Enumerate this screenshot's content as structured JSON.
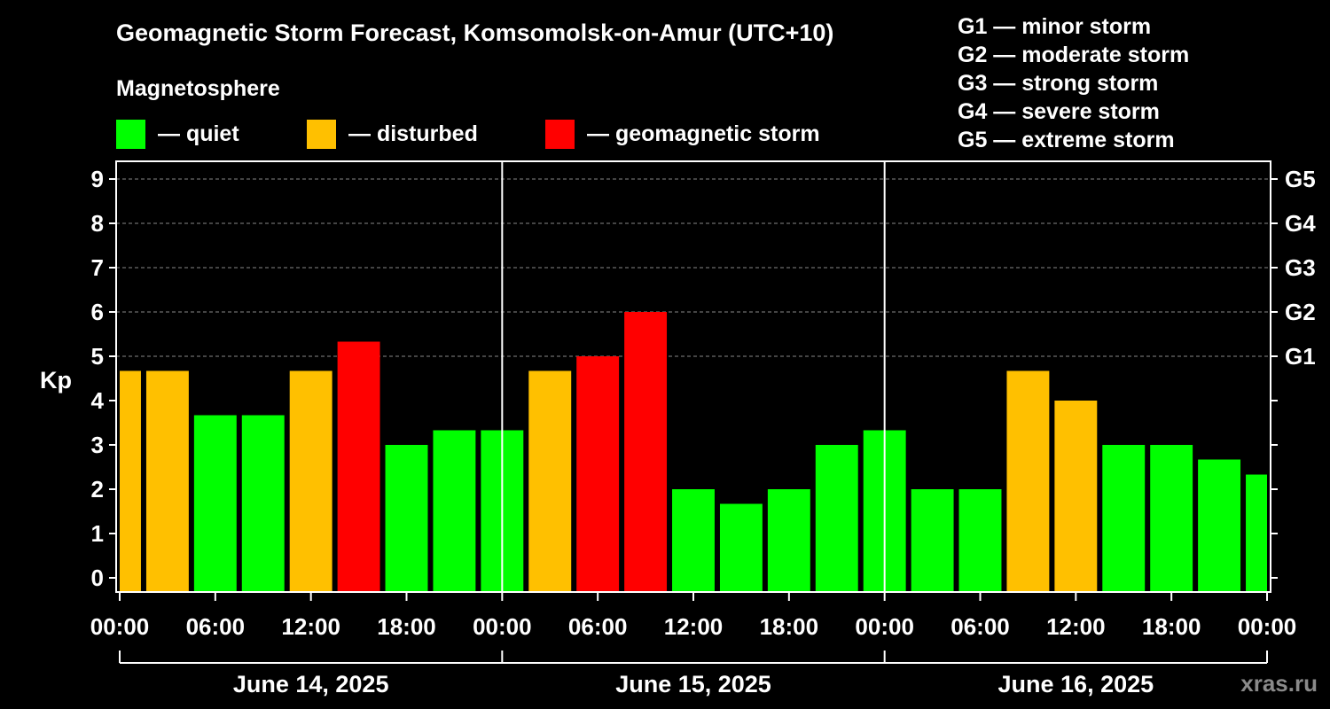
{
  "chart_data": {
    "type": "bar",
    "title": "Geomagnetic Storm Forecast, Komsomolsk-on-Amur (UTC+10)",
    "ylabel": "Kp",
    "ylim": [
      0,
      9
    ],
    "y_ticks": [
      "0",
      "1",
      "2",
      "3",
      "4",
      "5",
      "6",
      "7",
      "8",
      "9"
    ],
    "right_ticks": [
      {
        "kp": 5,
        "label": "G1"
      },
      {
        "kp": 6,
        "label": "G2"
      },
      {
        "kp": 7,
        "label": "G3"
      },
      {
        "kp": 8,
        "label": "G4"
      },
      {
        "kp": 9,
        "label": "G5"
      }
    ],
    "x_tick_labels": [
      "00:00",
      "06:00",
      "12:00",
      "18:00",
      "00:00",
      "06:00",
      "12:00",
      "18:00",
      "00:00",
      "06:00",
      "12:00",
      "18:00",
      "00:00"
    ],
    "days": [
      "June 14, 2025",
      "June 15, 2025",
      "June 16, 2025"
    ],
    "grid": true,
    "bars": [
      {
        "hour": 0,
        "kp": 4.67,
        "level": "disturbed"
      },
      {
        "hour": 3,
        "kp": 4.67,
        "level": "disturbed"
      },
      {
        "hour": 6,
        "kp": 3.67,
        "level": "quiet"
      },
      {
        "hour": 9,
        "kp": 3.67,
        "level": "quiet"
      },
      {
        "hour": 12,
        "kp": 4.67,
        "level": "disturbed"
      },
      {
        "hour": 15,
        "kp": 5.33,
        "level": "storm"
      },
      {
        "hour": 18,
        "kp": 3.0,
        "level": "quiet"
      },
      {
        "hour": 21,
        "kp": 3.33,
        "level": "quiet"
      },
      {
        "hour": 24,
        "kp": 3.33,
        "level": "quiet"
      },
      {
        "hour": 27,
        "kp": 4.67,
        "level": "disturbed"
      },
      {
        "hour": 30,
        "kp": 5.0,
        "level": "storm"
      },
      {
        "hour": 33,
        "kp": 6.0,
        "level": "storm"
      },
      {
        "hour": 36,
        "kp": 2.0,
        "level": "quiet"
      },
      {
        "hour": 39,
        "kp": 1.67,
        "level": "quiet"
      },
      {
        "hour": 42,
        "kp": 2.0,
        "level": "quiet"
      },
      {
        "hour": 45,
        "kp": 3.0,
        "level": "quiet"
      },
      {
        "hour": 48,
        "kp": 3.33,
        "level": "quiet"
      },
      {
        "hour": 51,
        "kp": 2.0,
        "level": "quiet"
      },
      {
        "hour": 54,
        "kp": 2.0,
        "level": "quiet"
      },
      {
        "hour": 57,
        "kp": 4.67,
        "level": "disturbed"
      },
      {
        "hour": 60,
        "kp": 4.0,
        "level": "disturbed"
      },
      {
        "hour": 63,
        "kp": 3.0,
        "level": "quiet"
      },
      {
        "hour": 66,
        "kp": 3.0,
        "level": "quiet"
      },
      {
        "hour": 69,
        "kp": 2.67,
        "level": "quiet"
      },
      {
        "hour": 72,
        "kp": 2.33,
        "level": "quiet"
      }
    ],
    "colors": {
      "quiet": "#00ff00",
      "disturbed": "#ffc000",
      "storm": "#ff0000"
    }
  },
  "legend": {
    "heading": "Magnetosphere",
    "items": [
      {
        "key": "quiet",
        "label": "— quiet",
        "color": "#00ff00"
      },
      {
        "key": "disturbed",
        "label": "— disturbed",
        "color": "#ffc000"
      },
      {
        "key": "storm",
        "label": "— geomagnetic storm",
        "color": "#ff0000"
      }
    ]
  },
  "storm_levels": [
    "G1 — minor storm",
    "G2 — moderate storm",
    "G3 — strong storm",
    "G4 — severe storm",
    "G5 — extreme storm"
  ],
  "watermark": "xras.ru"
}
